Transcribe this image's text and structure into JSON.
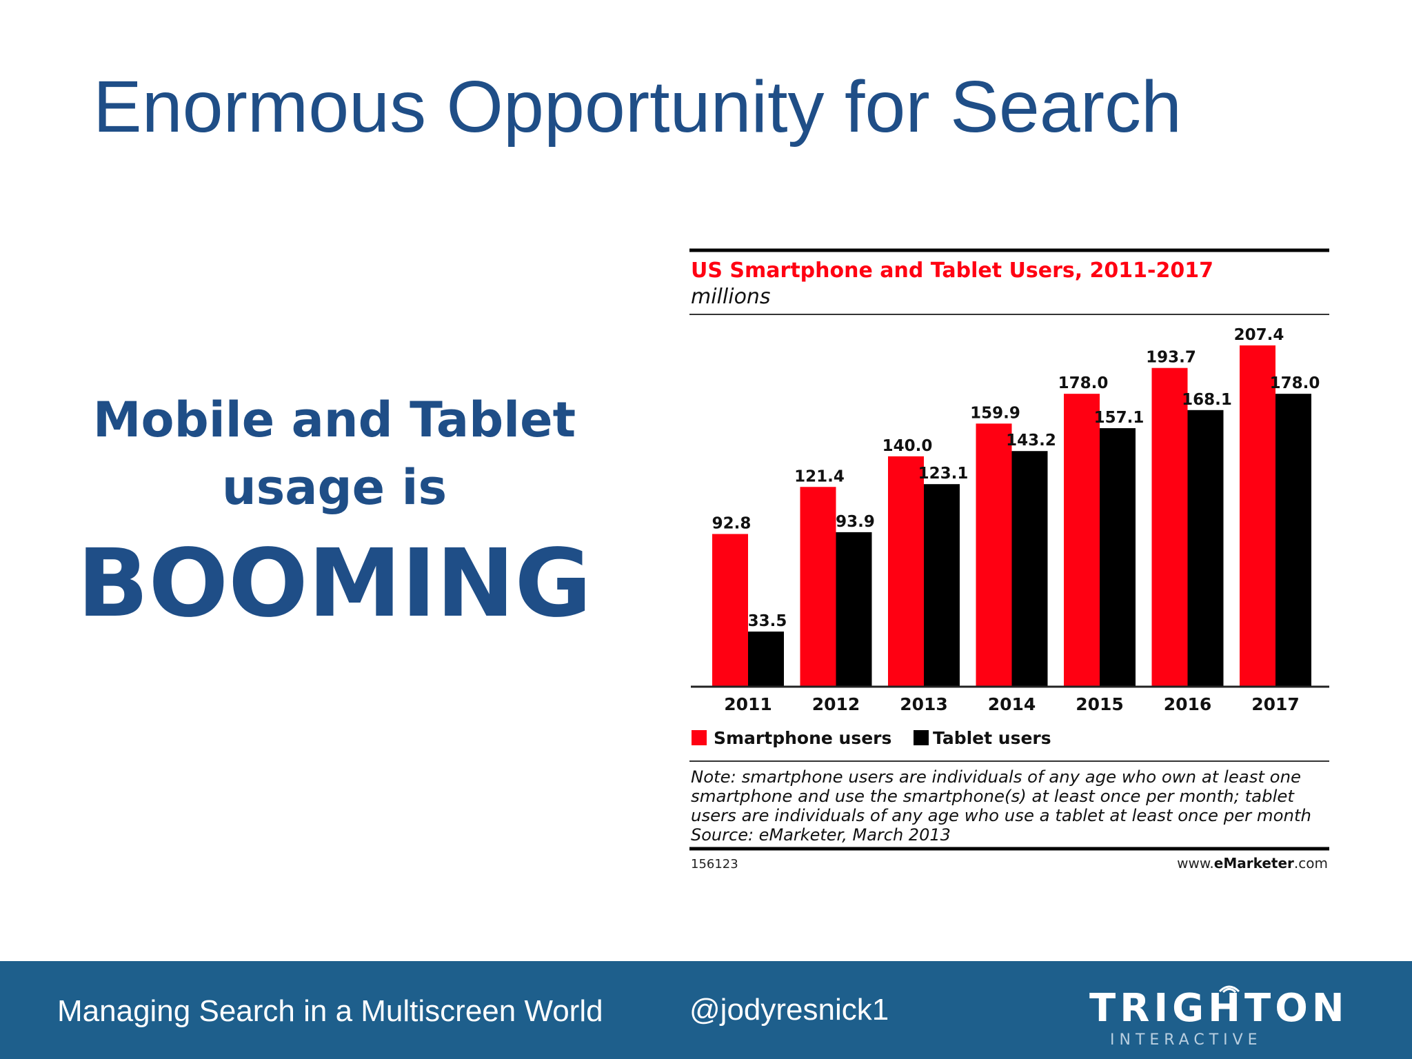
{
  "slide": {
    "title": "Enormous Opportunity for Search",
    "left_line1": "Mobile and Tablet",
    "left_line2": "usage is",
    "left_line3": "BOOMING"
  },
  "footer": {
    "left_text": "Managing Search in a Multiscreen World",
    "handle": "@jodyresnick1",
    "logo_text": "TRIGHTON",
    "logo_sub": "INTERACTIVE"
  },
  "colors": {
    "title_blue": "#1f4e87",
    "footer_blue": "#1e5f8c",
    "smartphone": "#ff0012",
    "tablet": "#000000"
  },
  "chart_data": {
    "type": "bar",
    "title": "US Smartphone and Tablet Users, 2011-2017",
    "subtitle": "millions",
    "categories": [
      "2011",
      "2012",
      "2013",
      "2014",
      "2015",
      "2016",
      "2017"
    ],
    "series": [
      {
        "name": "Smartphone users",
        "color": "#ff0012",
        "values": [
          92.8,
          121.4,
          140.0,
          159.9,
          178.0,
          193.7,
          207.4
        ]
      },
      {
        "name": "Tablet users",
        "color": "#000000",
        "values": [
          33.5,
          93.9,
          123.1,
          143.2,
          157.1,
          168.1,
          178.0
        ]
      }
    ],
    "ylim": [
      0,
      207.4
    ],
    "grid": false,
    "legend": "bottom-left",
    "note_lines": [
      "Note: smartphone users are individuals of any age who own at least one",
      "smartphone and use the smartphone(s) at least once per month; tablet",
      "users are individuals of any age who use a tablet at least once per month",
      "Source: eMarketer, March 2013"
    ],
    "chart_id": "156123",
    "source_site_prefix": "www.",
    "source_site_brand": "eMarketer",
    "source_site_suffix": ".com"
  }
}
